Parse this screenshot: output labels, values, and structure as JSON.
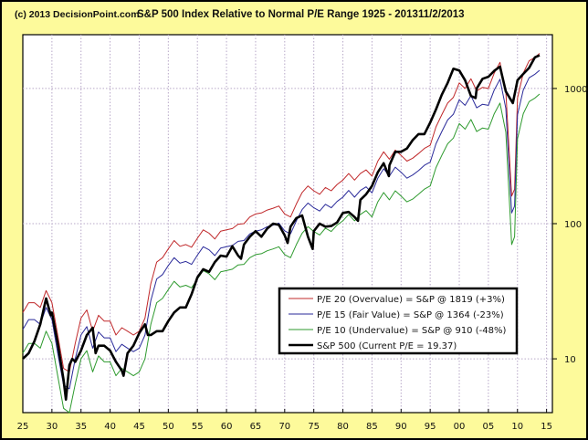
{
  "header": {
    "credit": "(c) 2013 DecisionPoint.com",
    "title": "S&P 500 Index Relative to Normal P/E Range 1925 - 2013",
    "date": "11/2/2013"
  },
  "chart_data": {
    "type": "line",
    "title": "S&P 500 Index Relative to Normal P/E Range 1925 - 2013",
    "xlabel": "",
    "ylabel": "",
    "y_scale": "log",
    "xlim": [
      1925,
      2016
    ],
    "ylim": [
      4,
      2500
    ],
    "x_ticks": [
      "25",
      "30",
      "35",
      "40",
      "45",
      "50",
      "55",
      "60",
      "65",
      "70",
      "75",
      "80",
      "85",
      "90",
      "95",
      "00",
      "05",
      "10",
      "15"
    ],
    "x_tick_values": [
      1925,
      1930,
      1935,
      1940,
      1945,
      1950,
      1955,
      1960,
      1965,
      1970,
      1975,
      1980,
      1985,
      1990,
      1995,
      2000,
      2005,
      2010,
      2015
    ],
    "y_ticks": [
      "10",
      "100",
      "1000"
    ],
    "y_tick_values": [
      10,
      100,
      1000
    ],
    "y_axis_side": "right",
    "grid": true,
    "legend_position": "bottom-right",
    "series": [
      {
        "name": "P/E 20 (Overvalue) = S&P @ 1819 (+3%)",
        "color": "#c0282a",
        "width": 1,
        "x": [
          1925,
          1926,
          1927,
          1928,
          1929,
          1930,
          1931,
          1932,
          1933,
          1934,
          1935,
          1936,
          1937,
          1938,
          1939,
          1940,
          1941,
          1942,
          1943,
          1944,
          1945,
          1946,
          1947,
          1948,
          1949,
          1950,
          1951,
          1952,
          1953,
          1954,
          1955,
          1956,
          1957,
          1958,
          1959,
          1960,
          1961,
          1962,
          1963,
          1964,
          1965,
          1966,
          1967,
          1968,
          1969,
          1970,
          1971,
          1972,
          1973,
          1974,
          1975,
          1976,
          1977,
          1978,
          1979,
          1980,
          1981,
          1982,
          1983,
          1984,
          1985,
          1986,
          1987,
          1988,
          1989,
          1990,
          1991,
          1992,
          1993,
          1994,
          1995,
          1996,
          1997,
          1998,
          1999,
          2000,
          2001,
          2002,
          2003,
          2004,
          2005,
          2006,
          2007,
          2008,
          2009,
          2009.5,
          2010,
          2011,
          2012,
          2013,
          2013.8
        ],
        "values": [
          22,
          26,
          26,
          24,
          32,
          26,
          15,
          8.5,
          8,
          13,
          20,
          23,
          16,
          21,
          19,
          19,
          15,
          17,
          16,
          15,
          16,
          20,
          36,
          52,
          56,
          65,
          75,
          68,
          70,
          67,
          78,
          90,
          85,
          77,
          88,
          90,
          92,
          99,
          100,
          112,
          118,
          120,
          126,
          130,
          135,
          118,
          112,
          140,
          170,
          190,
          175,
          165,
          185,
          175,
          195,
          210,
          235,
          210,
          235,
          250,
          225,
          290,
          340,
          300,
          350,
          320,
          290,
          305,
          330,
          360,
          380,
          520,
          640,
          780,
          860,
          1100,
          1000,
          1180,
          960,
          1020,
          1000,
          1300,
          1560,
          950,
          160,
          180,
          850,
          1300,
          1600,
          1700,
          1819
        ]
      },
      {
        "name": "P/E 15 (Fair Value) = S&P @ 1364 (-23%)",
        "color": "#2a2a9a",
        "width": 1,
        "x": [
          1925,
          1926,
          1927,
          1928,
          1929,
          1930,
          1931,
          1932,
          1933,
          1934,
          1935,
          1936,
          1937,
          1938,
          1939,
          1940,
          1941,
          1942,
          1943,
          1944,
          1945,
          1946,
          1947,
          1948,
          1949,
          1950,
          1951,
          1952,
          1953,
          1954,
          1955,
          1956,
          1957,
          1958,
          1959,
          1960,
          1961,
          1962,
          1963,
          1964,
          1965,
          1966,
          1967,
          1968,
          1969,
          1970,
          1971,
          1972,
          1973,
          1974,
          1975,
          1976,
          1977,
          1978,
          1979,
          1980,
          1981,
          1982,
          1983,
          1984,
          1985,
          1986,
          1987,
          1988,
          1989,
          1990,
          1991,
          1992,
          1993,
          1994,
          1995,
          1996,
          1997,
          1998,
          1999,
          2000,
          2001,
          2002,
          2003,
          2004,
          2005,
          2006,
          2007,
          2008,
          2009,
          2009.5,
          2010,
          2011,
          2012,
          2013,
          2013.8
        ],
        "values": [
          16.5,
          19.5,
          19.5,
          18,
          24,
          19.5,
          11,
          6.4,
          6,
          10,
          15,
          17.3,
          12,
          15.8,
          14.3,
          14.3,
          11.3,
          12.8,
          12,
          11.3,
          12,
          15,
          27,
          39,
          42,
          49,
          56,
          51,
          52.5,
          50,
          58.5,
          67.5,
          64,
          58,
          66,
          67.5,
          69,
          74,
          75,
          84,
          88,
          90,
          95,
          97.5,
          101,
          88.5,
          84,
          105,
          127,
          142,
          131,
          124,
          139,
          131,
          146,
          157,
          176,
          157,
          176,
          187,
          169,
          217,
          255,
          225,
          262,
          240,
          217,
          229,
          247,
          270,
          285,
          390,
          480,
          585,
          645,
          825,
          750,
          885,
          720,
          765,
          750,
          975,
          1170,
          712,
          120,
          135,
          640,
          975,
          1200,
          1275,
          1364
        ]
      },
      {
        "name": "P/E 10 (Undervalue) = S&P @ 910 (-48%)",
        "color": "#2e9a2e",
        "width": 1,
        "x": [
          1925,
          1926,
          1927,
          1928,
          1929,
          1930,
          1931,
          1932,
          1933,
          1934,
          1935,
          1936,
          1937,
          1938,
          1939,
          1940,
          1941,
          1942,
          1943,
          1944,
          1945,
          1946,
          1947,
          1948,
          1949,
          1950,
          1951,
          1952,
          1953,
          1954,
          1955,
          1956,
          1957,
          1958,
          1959,
          1960,
          1961,
          1962,
          1963,
          1964,
          1965,
          1966,
          1967,
          1968,
          1969,
          1970,
          1971,
          1972,
          1973,
          1974,
          1975,
          1976,
          1977,
          1978,
          1979,
          1980,
          1981,
          1982,
          1983,
          1984,
          1985,
          1986,
          1987,
          1988,
          1989,
          1990,
          1991,
          1992,
          1993,
          1994,
          1995,
          1996,
          1997,
          1998,
          1999,
          2000,
          2001,
          2002,
          2003,
          2004,
          2005,
          2006,
          2007,
          2008,
          2009,
          2009.5,
          2010,
          2011,
          2012,
          2013,
          2013.8
        ],
        "values": [
          11,
          13,
          13,
          12,
          16,
          13,
          7.5,
          4.3,
          4,
          6.5,
          10,
          11.5,
          8,
          10.5,
          9.5,
          9.5,
          7.5,
          8.5,
          8,
          7.5,
          8,
          10,
          18,
          26,
          28,
          32.5,
          37.5,
          34,
          35,
          33.5,
          39,
          45,
          42.5,
          38.5,
          44,
          45,
          46,
          49.5,
          50,
          56,
          59,
          60,
          63,
          65,
          67.5,
          59,
          56,
          70,
          85,
          95,
          87.5,
          82.5,
          92.5,
          87.5,
          97.5,
          105,
          117,
          105,
          117,
          125,
          112,
          145,
          170,
          150,
          175,
          160,
          145,
          152,
          165,
          180,
          190,
          260,
          320,
          390,
          430,
          550,
          500,
          590,
          480,
          510,
          500,
          650,
          780,
          475,
          70,
          80,
          425,
          650,
          800,
          850,
          910
        ]
      },
      {
        "name": "S&P 500 (Current P/E = 19.37)",
        "color": "#000000",
        "width": 2.6,
        "x": [
          1925,
          1926,
          1927,
          1928,
          1929,
          1929.8,
          1930,
          1931,
          1932,
          1932.4,
          1933,
          1933.5,
          1934,
          1935,
          1936,
          1937,
          1937.5,
          1938,
          1939,
          1940,
          1941,
          1942,
          1942.3,
          1943,
          1944,
          1945,
          1946,
          1946.5,
          1947,
          1948,
          1949,
          1950,
          1951,
          1952,
          1953,
          1954,
          1955,
          1956,
          1957,
          1958,
          1959,
          1960,
          1961,
          1962,
          1962.5,
          1963,
          1964,
          1965,
          1966,
          1967,
          1968,
          1969,
          1970,
          1970.5,
          1971,
          1972,
          1973,
          1974,
          1974.8,
          1975,
          1976,
          1977,
          1978,
          1979,
          1980,
          1981,
          1982,
          1982.6,
          1983,
          1984,
          1985,
          1986,
          1987,
          1987.9,
          1988,
          1989,
          1990,
          1991,
          1992,
          1993,
          1994,
          1995,
          1996,
          1997,
          1998,
          1999,
          2000,
          2001,
          2002,
          2002.8,
          2003,
          2004,
          2005,
          2006,
          2007,
          2008,
          2009.2,
          2010,
          2011,
          2012,
          2013,
          2013.8
        ],
        "values": [
          10,
          11,
          13.5,
          18,
          28,
          21,
          22,
          13,
          7,
          5,
          9,
          10,
          9.5,
          11.5,
          15,
          17,
          11,
          12.5,
          12.5,
          11.5,
          9.5,
          8.2,
          7.5,
          11,
          12.5,
          15.5,
          18,
          15,
          15,
          16,
          16,
          19,
          22,
          24,
          24,
          30,
          40,
          46,
          44,
          52,
          58,
          57,
          68,
          58,
          55,
          70,
          80,
          88,
          80,
          92,
          100,
          98,
          82,
          72,
          95,
          110,
          115,
          80,
          65,
          88,
          100,
          95,
          96,
          102,
          120,
          122,
          112,
          105,
          150,
          165,
          190,
          240,
          280,
          225,
          270,
          340,
          340,
          360,
          415,
          460,
          460,
          560,
          700,
          900,
          1100,
          1400,
          1360,
          1150,
          880,
          850,
          1000,
          1180,
          1220,
          1350,
          1450,
          950,
          780,
          1150,
          1280,
          1420,
          1700,
          1760
        ]
      }
    ]
  }
}
